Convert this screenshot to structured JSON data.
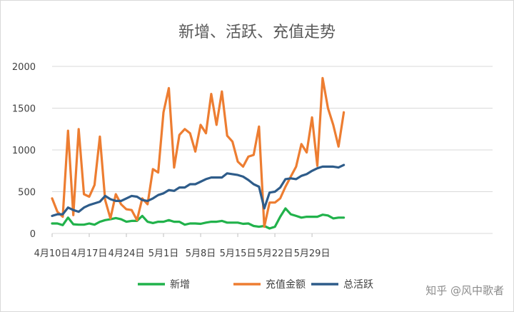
{
  "chart_data": {
    "type": "line",
    "title": "新增、活跃、充值走势",
    "xlabel": "",
    "ylabel": "",
    "ylim": [
      0,
      2000
    ],
    "yticks": [
      0,
      500,
      1000,
      1500,
      2000
    ],
    "xticks": [
      "4月10日",
      "4月17日",
      "4月24日",
      "5月1日",
      "5月8日",
      "5月15日",
      "5月22日",
      "5月29日"
    ],
    "grid": "horizontal",
    "legend_position": "bottom",
    "x_start_index": 0,
    "series": [
      {
        "name": "新增",
        "color": "#21b24b",
        "values": [
          120,
          120,
          100,
          190,
          110,
          105,
          105,
          120,
          105,
          140,
          160,
          170,
          185,
          170,
          140,
          150,
          150,
          210,
          140,
          125,
          140,
          140,
          160,
          140,
          140,
          105,
          120,
          120,
          115,
          130,
          140,
          140,
          150,
          130,
          130,
          130,
          115,
          120,
          90,
          80,
          90,
          60,
          80,
          200,
          300,
          230,
          210,
          190,
          200,
          200,
          200,
          225,
          215,
          180,
          190,
          190
        ]
      },
      {
        "name": "充值金额",
        "color": "#ed7d31",
        "values": [
          420,
          260,
          200,
          1230,
          220,
          1250,
          470,
          440,
          580,
          1160,
          400,
          180,
          470,
          350,
          290,
          280,
          160,
          420,
          350,
          770,
          730,
          1450,
          1740,
          790,
          1180,
          1250,
          1200,
          980,
          1300,
          1200,
          1670,
          1300,
          1700,
          1170,
          1100,
          860,
          800,
          920,
          940,
          1280,
          80,
          370,
          370,
          420,
          560,
          680,
          800,
          1070,
          970,
          1390,
          810,
          1860,
          1500,
          1300,
          1040,
          1450
        ]
      },
      {
        "name": "总活跃",
        "color": "#2e5c8a",
        "values": [
          210,
          230,
          230,
          310,
          280,
          260,
          310,
          340,
          360,
          380,
          450,
          410,
          390,
          390,
          420,
          450,
          440,
          400,
          390,
          420,
          460,
          480,
          520,
          510,
          550,
          550,
          590,
          590,
          620,
          650,
          670,
          670,
          670,
          720,
          710,
          700,
          680,
          640,
          590,
          560,
          300,
          490,
          500,
          550,
          650,
          660,
          650,
          690,
          710,
          750,
          780,
          800,
          800,
          800,
          790,
          820
        ]
      }
    ]
  },
  "watermark": "知乎 @风中歌者"
}
